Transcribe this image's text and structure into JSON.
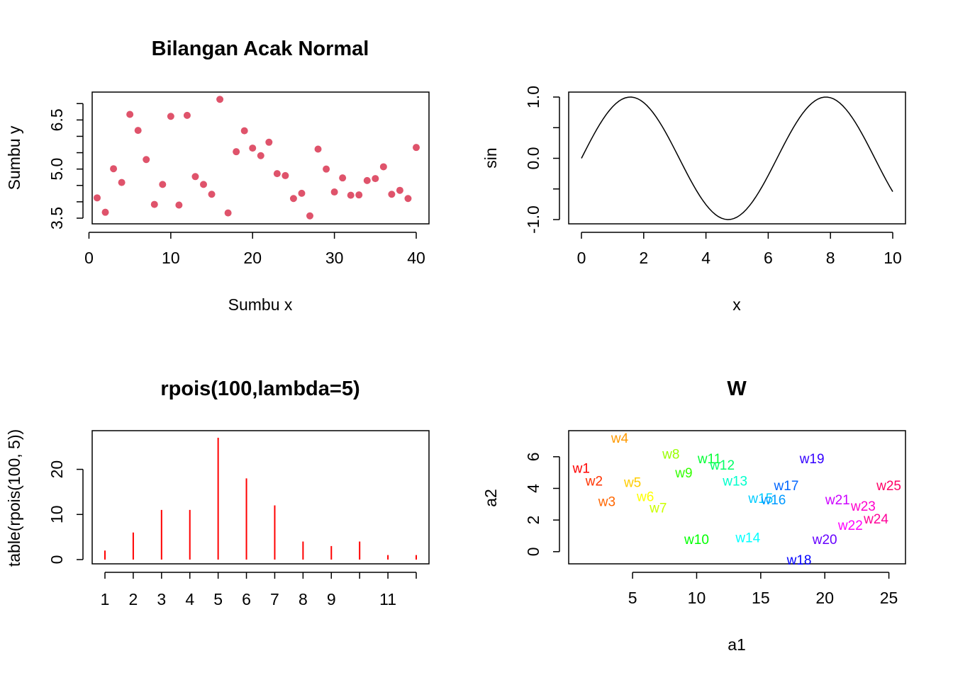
{
  "chart_data": [
    {
      "type": "scatter",
      "title": "Bilangan Acak Normal",
      "xlabel": "Sumbu x",
      "ylabel": "Sumbu y",
      "xlim": [
        1,
        40
      ],
      "ylim": [
        3.5,
        7.2
      ],
      "xticks": [
        0,
        10,
        20,
        30,
        40
      ],
      "yticks": [
        3.5,
        4.0,
        4.5,
        5.0,
        5.5,
        6.0,
        6.5,
        7.0
      ],
      "ytick_labels": [
        "3.5",
        "",
        "",
        "5.0",
        "",
        "",
        "6.5",
        ""
      ],
      "point_color": "#DF536B",
      "x": [
        1,
        2,
        3,
        4,
        5,
        6,
        7,
        8,
        9,
        10,
        11,
        12,
        13,
        14,
        15,
        16,
        17,
        18,
        19,
        20,
        21,
        22,
        23,
        24,
        25,
        26,
        27,
        28,
        29,
        30,
        31,
        32,
        33,
        34,
        35,
        36,
        37,
        38,
        39,
        40
      ],
      "y": [
        4.12,
        3.68,
        5.01,
        4.59,
        6.67,
        6.18,
        5.29,
        3.92,
        4.53,
        6.61,
        3.9,
        6.64,
        4.77,
        4.53,
        4.23,
        7.13,
        3.66,
        5.53,
        6.17,
        5.64,
        5.41,
        5.82,
        4.86,
        4.8,
        4.1,
        4.26,
        3.57,
        5.61,
        5.0,
        4.3,
        4.73,
        4.2,
        4.21,
        4.65,
        4.71,
        5.07,
        4.23,
        4.35,
        4.1,
        5.66
      ]
    },
    {
      "type": "line",
      "title": "",
      "xlabel": "x",
      "ylabel": "sin",
      "xlim": [
        0,
        10
      ],
      "ylim": [
        -1,
        1
      ],
      "xticks": [
        0,
        2,
        4,
        6,
        8,
        10
      ],
      "yticks": [
        -1.0,
        -0.5,
        0.0,
        0.5,
        1.0
      ],
      "ytick_labels": [
        "-1.0",
        "",
        "0.0",
        "",
        "1.0"
      ],
      "line_color": "#000000",
      "x_start": 0,
      "x_end": 10,
      "x_step": 0.1,
      "function": "sin"
    },
    {
      "type": "bar",
      "title": "rpois(100,lambda=5)",
      "xlabel": "",
      "ylabel": "table(rpois(100, 5))",
      "bar_color": "#FF0000",
      "categories": [
        "1",
        "2",
        "3",
        "4",
        "5",
        "6",
        "7",
        "8",
        "9",
        "10",
        "11",
        "12"
      ],
      "category_labels": [
        "1",
        "2",
        "3",
        "4",
        "5",
        "6",
        "7",
        "8",
        "9",
        "",
        "11",
        ""
      ],
      "values": [
        2,
        6,
        11,
        11,
        27,
        18,
        12,
        4,
        3,
        4,
        1,
        1
      ],
      "ylim": [
        0,
        27
      ],
      "yticks": [
        0,
        10,
        20
      ]
    },
    {
      "type": "scatter",
      "title": "W",
      "xlabel": "a1",
      "ylabel": "a2",
      "xlim": [
        0.9,
        25.3
      ],
      "ylim": [
        -0.5,
        7.2
      ],
      "xticks": [
        5,
        10,
        15,
        20,
        25
      ],
      "yticks": [
        0,
        2,
        4,
        6
      ],
      "points": [
        {
          "label": "w1",
          "x": 1,
          "y": 5.3,
          "color": "#FF0000"
        },
        {
          "label": "w2",
          "x": 2,
          "y": 4.5,
          "color": "#FF3300"
        },
        {
          "label": "w3",
          "x": 3,
          "y": 3.2,
          "color": "#FF6600"
        },
        {
          "label": "w4",
          "x": 4,
          "y": 7.2,
          "color": "#FF9900"
        },
        {
          "label": "w5",
          "x": 5,
          "y": 4.4,
          "color": "#FFCC00"
        },
        {
          "label": "w6",
          "x": 6,
          "y": 3.5,
          "color": "#FFFF00"
        },
        {
          "label": "w7",
          "x": 7,
          "y": 2.8,
          "color": "#CCFF00"
        },
        {
          "label": "w8",
          "x": 8,
          "y": 6.2,
          "color": "#99FF00"
        },
        {
          "label": "w9",
          "x": 9,
          "y": 5.0,
          "color": "#33FF00"
        },
        {
          "label": "w10",
          "x": 10,
          "y": 0.8,
          "color": "#00FF00"
        },
        {
          "label": "w11",
          "x": 11,
          "y": 5.9,
          "color": "#00FF33"
        },
        {
          "label": "w12",
          "x": 12,
          "y": 5.5,
          "color": "#00FF66"
        },
        {
          "label": "w13",
          "x": 13,
          "y": 4.5,
          "color": "#00FFCC"
        },
        {
          "label": "w14",
          "x": 14,
          "y": 0.9,
          "color": "#00FFFF"
        },
        {
          "label": "w15",
          "x": 15,
          "y": 3.4,
          "color": "#00CCFF"
        },
        {
          "label": "w16",
          "x": 16,
          "y": 3.3,
          "color": "#0099FF"
        },
        {
          "label": "w17",
          "x": 17,
          "y": 4.2,
          "color": "#0066FF"
        },
        {
          "label": "w18",
          "x": 18,
          "y": -0.5,
          "color": "#0000FF"
        },
        {
          "label": "w19",
          "x": 19,
          "y": 5.9,
          "color": "#3300FF"
        },
        {
          "label": "w20",
          "x": 20,
          "y": 0.8,
          "color": "#6600FF"
        },
        {
          "label": "w21",
          "x": 21,
          "y": 3.3,
          "color": "#CC00FF"
        },
        {
          "label": "w22",
          "x": 22,
          "y": 1.7,
          "color": "#FF00FF"
        },
        {
          "label": "w23",
          "x": 23,
          "y": 2.9,
          "color": "#FF00CC"
        },
        {
          "label": "w24",
          "x": 24,
          "y": 2.1,
          "color": "#FF0099"
        },
        {
          "label": "w25",
          "x": 25,
          "y": 4.2,
          "color": "#FF0066"
        }
      ]
    }
  ]
}
